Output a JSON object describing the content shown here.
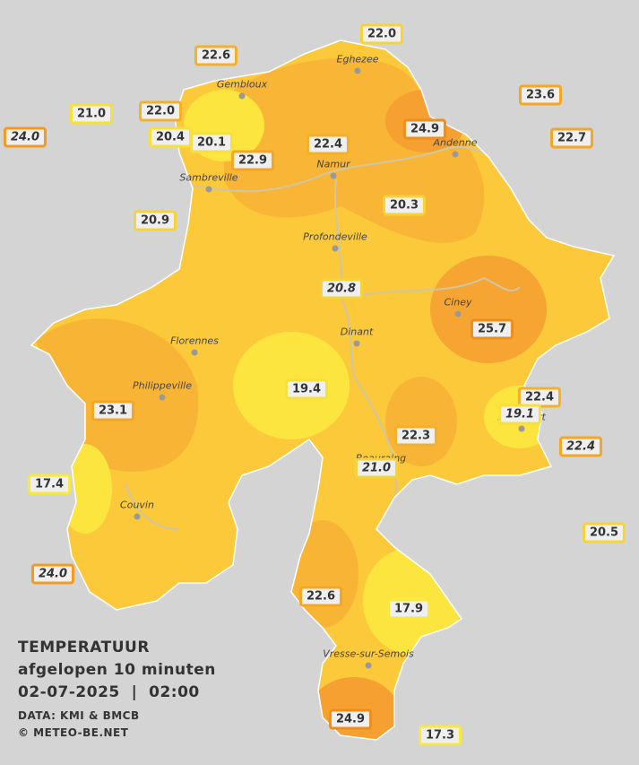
{
  "stations": [
    {
      "value": "22.0",
      "color": "#f7d33a",
      "italic": false
    },
    {
      "value": "22.6",
      "color": "#f5b02a",
      "italic": false
    },
    {
      "value": "23.6",
      "color": "#f5a623",
      "italic": false
    },
    {
      "value": "21.0",
      "color": "#f7e03a",
      "italic": false
    },
    {
      "value": "22.0",
      "color": "#f5b02a",
      "italic": false
    },
    {
      "value": "24.0",
      "color": "#f39a1f",
      "italic": true
    },
    {
      "value": "20.4",
      "color": "#f7e03a",
      "italic": false
    },
    {
      "value": "20.1",
      "color": "#f7e03a",
      "italic": false
    },
    {
      "value": "24.9",
      "color": "#f08e1b",
      "italic": false
    },
    {
      "value": "22.4",
      "color": "#f5b02a",
      "italic": false
    },
    {
      "value": "22.7",
      "color": "#f5a623",
      "italic": false
    },
    {
      "value": "22.9",
      "color": "#f5a623",
      "italic": false
    },
    {
      "value": "20.3",
      "color": "#f7d33a",
      "italic": false
    },
    {
      "value": "20.9",
      "color": "#f7d33a",
      "italic": false
    },
    {
      "value": "20.8",
      "color": "#f7d33a",
      "italic": true
    },
    {
      "value": "25.7",
      "color": "#f08e1b",
      "italic": false
    },
    {
      "value": "19.4",
      "color": "#f7e03a",
      "italic": false
    },
    {
      "value": "22.4",
      "color": "#f5b02a",
      "italic": false
    },
    {
      "value": "23.1",
      "color": "#f5a623",
      "italic": false
    },
    {
      "value": "19.1",
      "color": "#f7e03a",
      "italic": true
    },
    {
      "value": "22.3",
      "color": "#f5b02a",
      "italic": false
    },
    {
      "value": "22.4",
      "color": "#f5a623",
      "italic": true
    },
    {
      "value": "21.0",
      "color": "#f7d33a",
      "italic": true
    },
    {
      "value": "17.4",
      "color": "#f7ea3c",
      "italic": false
    },
    {
      "value": "20.5",
      "color": "#f7d33a",
      "italic": false
    },
    {
      "value": "24.0",
      "color": "#f39a1f",
      "italic": true
    },
    {
      "value": "22.6",
      "color": "#f5a623",
      "italic": false
    },
    {
      "value": "17.9",
      "color": "#f7ea3c",
      "italic": false
    },
    {
      "value": "24.9",
      "color": "#f08e1b",
      "italic": false
    },
    {
      "value": "17.3",
      "color": "#f7ea3c",
      "italic": false
    }
  ],
  "cities": [
    "Eghezee",
    "Gembloux",
    "Andenne",
    "Namur",
    "Sambreville",
    "Profondeville",
    "Ciney",
    "Dinant",
    "Florennes",
    "Philippeville",
    "Rochefort",
    "Beauraing",
    "Couvin",
    "Vresse-sur-Semois"
  ],
  "legend": {
    "title": "TEMPERATUUR",
    "subtitle": "afgelopen 10 minuten",
    "datetime": "02-07-2025  |  02:00",
    "source": "DATA: KMI & BMCB",
    "copyright": "© METEO-BE.NET"
  }
}
